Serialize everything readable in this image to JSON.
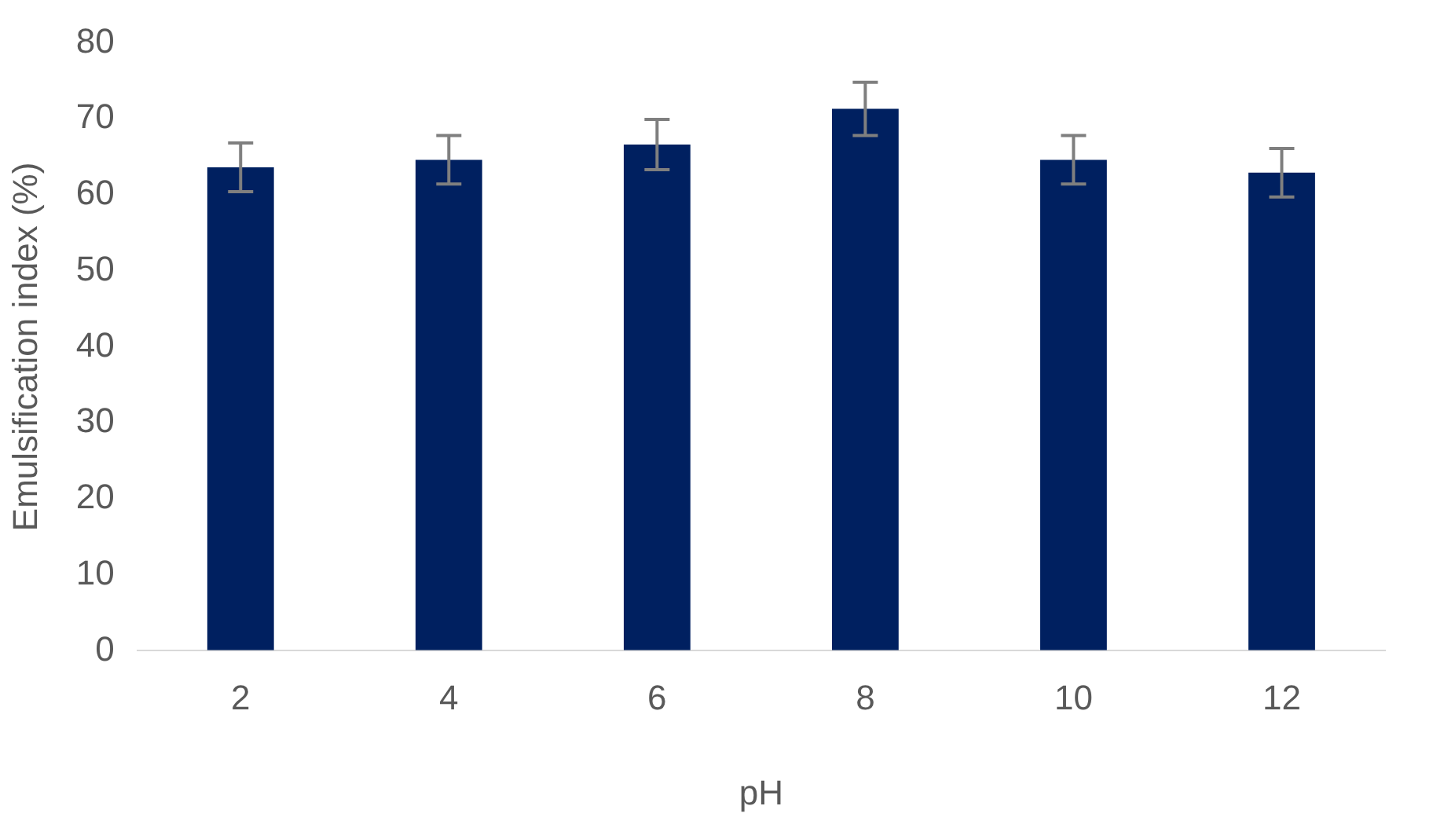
{
  "chart_data": {
    "type": "bar",
    "xlabel": "pH",
    "ylabel": "Emulsification index (%)",
    "categories": [
      "2",
      "4",
      "6",
      "8",
      "10",
      "12"
    ],
    "values": [
      63.6,
      64.6,
      66.6,
      71.3,
      64.6,
      62.9
    ],
    "errors": [
      3.2,
      3.2,
      3.3,
      3.5,
      3.2,
      3.2
    ],
    "color": "#002060",
    "ylim": [
      0,
      80
    ],
    "yticks": [
      0,
      10,
      20,
      30,
      40,
      50,
      60,
      70,
      80
    ],
    "grid": false,
    "legend": false
  }
}
